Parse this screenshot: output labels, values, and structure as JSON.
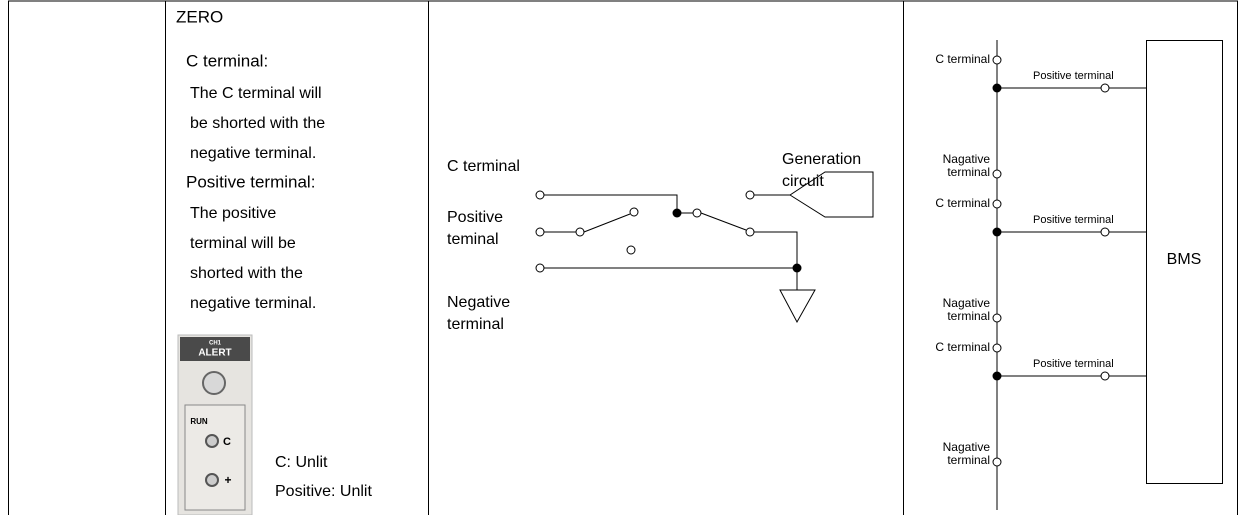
{
  "zero_cell": {
    "heading": "ZERO",
    "c_terminal_title": "C terminal:",
    "c_terminal_lines": [
      "The C terminal will",
      "be shorted with the",
      "negative terminal."
    ],
    "positive_title": "Positive terminal:",
    "positive_lines": [
      "The positive",
      "terminal will be",
      "shorted with the",
      "negative terminal."
    ],
    "panel": {
      "channel": "CH1",
      "alert": "ALERT",
      "run": "RUN",
      "c": "C",
      "plus": "+"
    },
    "status": [
      "C: Unlit",
      "Positive: Unlit"
    ]
  },
  "switch_diagram": {
    "c_terminal": "C terminal",
    "positive": [
      "Positive",
      "teminal"
    ],
    "negative": [
      "Negative",
      "terminal"
    ],
    "generation": [
      "Generation",
      "circuit"
    ]
  },
  "bms_diagram": {
    "bms": "BMS",
    "groups": [
      {
        "c_terminal": "C terminal",
        "positive": "Positive terminal",
        "negative": [
          "Nagative",
          "terminal"
        ]
      },
      {
        "c_terminal": "C terminal",
        "positive": "Positive terminal",
        "negative": [
          "Nagative",
          "terminal"
        ]
      },
      {
        "c_terminal": "C terminal",
        "positive": "Positive terminal",
        "negative": [
          "Nagative",
          "terminal"
        ]
      }
    ]
  }
}
